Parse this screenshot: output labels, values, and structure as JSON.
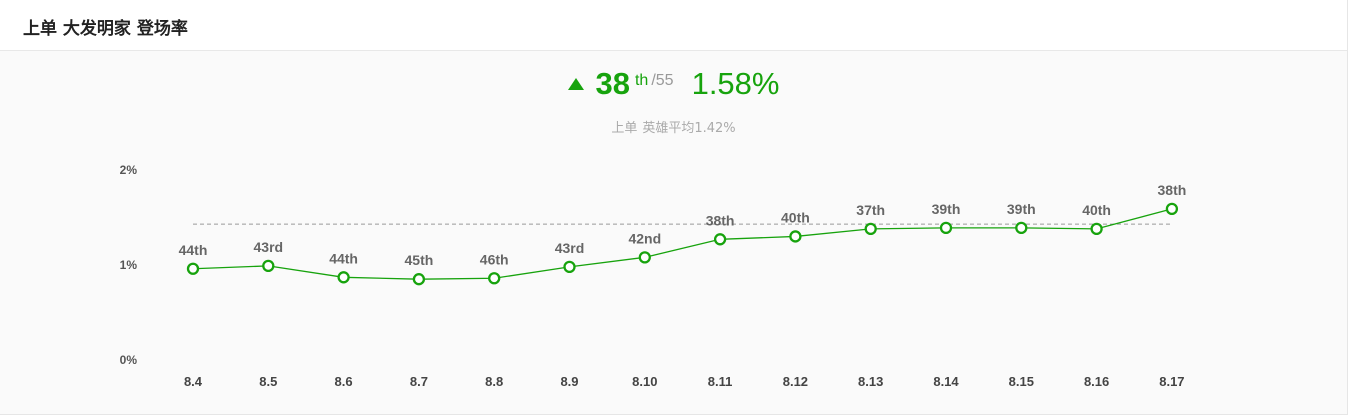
{
  "header": {
    "title": "上单 大发明家 登场率"
  },
  "summary": {
    "rank": "38",
    "rank_suffix": "th",
    "rank_total": "/55",
    "rate": "1.58%",
    "role": "上单",
    "average_text": "英雄平均1.42%"
  },
  "colors": {
    "accent": "#17a30d",
    "average_line": "#999999",
    "muted_text": "#aaaaaa"
  },
  "chart_data": {
    "type": "line",
    "categories": [
      "8.4",
      "8.5",
      "8.6",
      "8.7",
      "8.8",
      "8.9",
      "8.10",
      "8.11",
      "8.12",
      "8.13",
      "8.14",
      "8.15",
      "8.16",
      "8.17"
    ],
    "series": [
      {
        "values": [
          0.95,
          0.98,
          0.86,
          0.84,
          0.85,
          0.97,
          1.07,
          1.26,
          1.29,
          1.37,
          1.38,
          1.38,
          1.37,
          1.58
        ],
        "point_labels": [
          "44th",
          "43rd",
          "44th",
          "45th",
          "46th",
          "43rd",
          "42nd",
          "38th",
          "40th",
          "37th",
          "39th",
          "39th",
          "40th",
          "38th"
        ]
      }
    ],
    "average": 1.42,
    "yticks": [
      {
        "value": 0,
        "label": "0%"
      },
      {
        "value": 1,
        "label": "1%"
      },
      {
        "value": 2,
        "label": "2%"
      }
    ],
    "ylim": [
      0,
      2
    ],
    "grid": false,
    "legend": "none"
  }
}
